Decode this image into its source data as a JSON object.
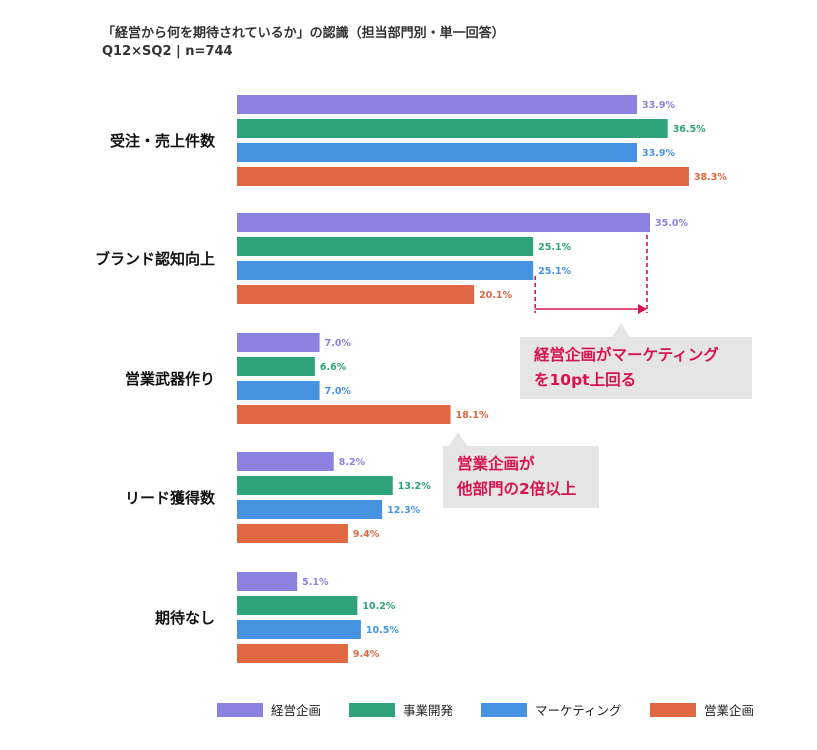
{
  "header": {
    "title": "「経営から何を期待されているか」の認識（担当部門別・単一回答）",
    "subtitle": "Q12×SQ2 | n=744"
  },
  "chart_data": {
    "type": "bar",
    "orientation": "horizontal",
    "value_format": "{v}%",
    "categories": [
      "受注・売上件数",
      "ブランド認知向上",
      "営業武器作り",
      "リード獲得数",
      "期待なし"
    ],
    "series": [
      {
        "name": "経営企画",
        "color": "#8b82e0",
        "values": [
          33.9,
          35.0,
          7.0,
          8.2,
          5.1
        ]
      },
      {
        "name": "事業開発",
        "color": "#2ea37a",
        "values": [
          36.5,
          25.1,
          6.6,
          13.2,
          10.2
        ]
      },
      {
        "name": "マーケティング",
        "color": "#4693e2",
        "values": [
          33.9,
          25.1,
          7.0,
          12.3,
          10.5
        ]
      },
      {
        "name": "営業企画",
        "color": "#df6742",
        "values": [
          38.3,
          20.1,
          18.1,
          9.4,
          9.4
        ]
      }
    ],
    "xlim": [
      0,
      40
    ],
    "grid": false,
    "legend_position": "bottom",
    "annotations": [
      {
        "text_line1": "経営企画がマーケティング",
        "text_line2": "を10pt上回る"
      },
      {
        "text_line1": "営業企画が",
        "text_line2": "他部門の2倍以上"
      }
    ]
  }
}
